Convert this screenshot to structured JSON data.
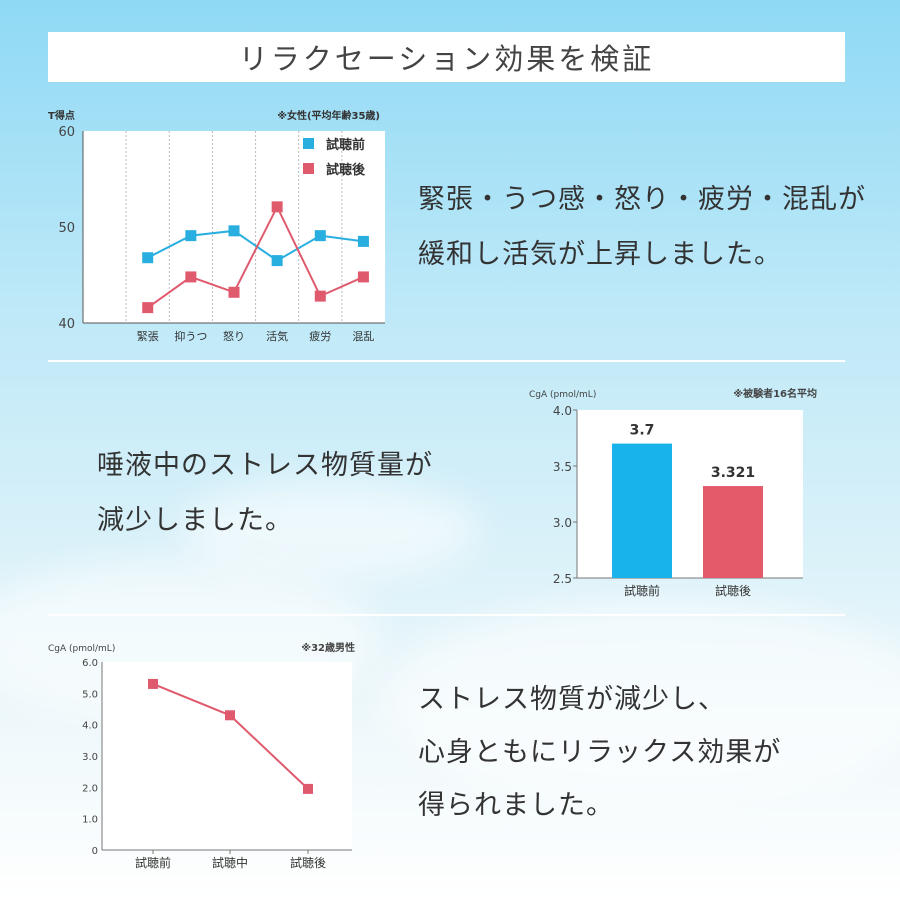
{
  "title": "リラクセーション効果を検証",
  "section1": {
    "lines": [
      "緊張・うつ感・怒り・疲労・混乱が",
      "緩和し活気が上昇しました。"
    ]
  },
  "section2": {
    "lines": [
      "唾液中のストレス物質量が",
      "減少しました。"
    ]
  },
  "section3": {
    "lines": [
      "ストレス物質が減少し、",
      "心身ともにリラックス効果が",
      "得られました。"
    ]
  },
  "chart_data": [
    {
      "type": "line",
      "ylabel": "T得点",
      "note": "※女性(平均年齢35歳)",
      "categories": [
        "緊張",
        "抑うつ",
        "怒り",
        "活気",
        "疲労",
        "混乱"
      ],
      "ylim": [
        40,
        60
      ],
      "yticks": [
        "40",
        "50",
        "60"
      ],
      "series": [
        {
          "name": "試聴前",
          "color": "#29aee0",
          "values": [
            46.8,
            49.1,
            49.6,
            46.5,
            49.1,
            48.5
          ]
        },
        {
          "name": "試聴後",
          "color": "#e05a6e",
          "values": [
            41.6,
            44.8,
            43.2,
            52.1,
            42.8,
            44.8
          ]
        }
      ],
      "legend": "top-right",
      "grid": "vertical dashed"
    },
    {
      "type": "bar",
      "ylabel": "CgA (pmol/mL)",
      "note": "※被験者16名平均",
      "categories": [
        "試聴前",
        "試聴後"
      ],
      "values": [
        3.7,
        3.321
      ],
      "labels": [
        "3.7",
        "3.321"
      ],
      "colors": [
        "#17b3ea",
        "#e45a6a"
      ],
      "ylim": [
        2.5,
        4.0
      ],
      "yticks": [
        "2.5",
        "3.0",
        "3.5",
        "4.0"
      ]
    },
    {
      "type": "line",
      "ylabel": "CgA (pmol/mL)",
      "note": "※32歳男性",
      "categories": [
        "試聴前",
        "試聴中",
        "試聴後"
      ],
      "values": [
        5.3,
        4.3,
        1.95
      ],
      "color": "#e05a6e",
      "ylim": [
        0,
        6
      ],
      "yticks": [
        "0",
        "1.0",
        "2.0",
        "3.0",
        "4.0",
        "5.0",
        "6.0"
      ]
    }
  ]
}
